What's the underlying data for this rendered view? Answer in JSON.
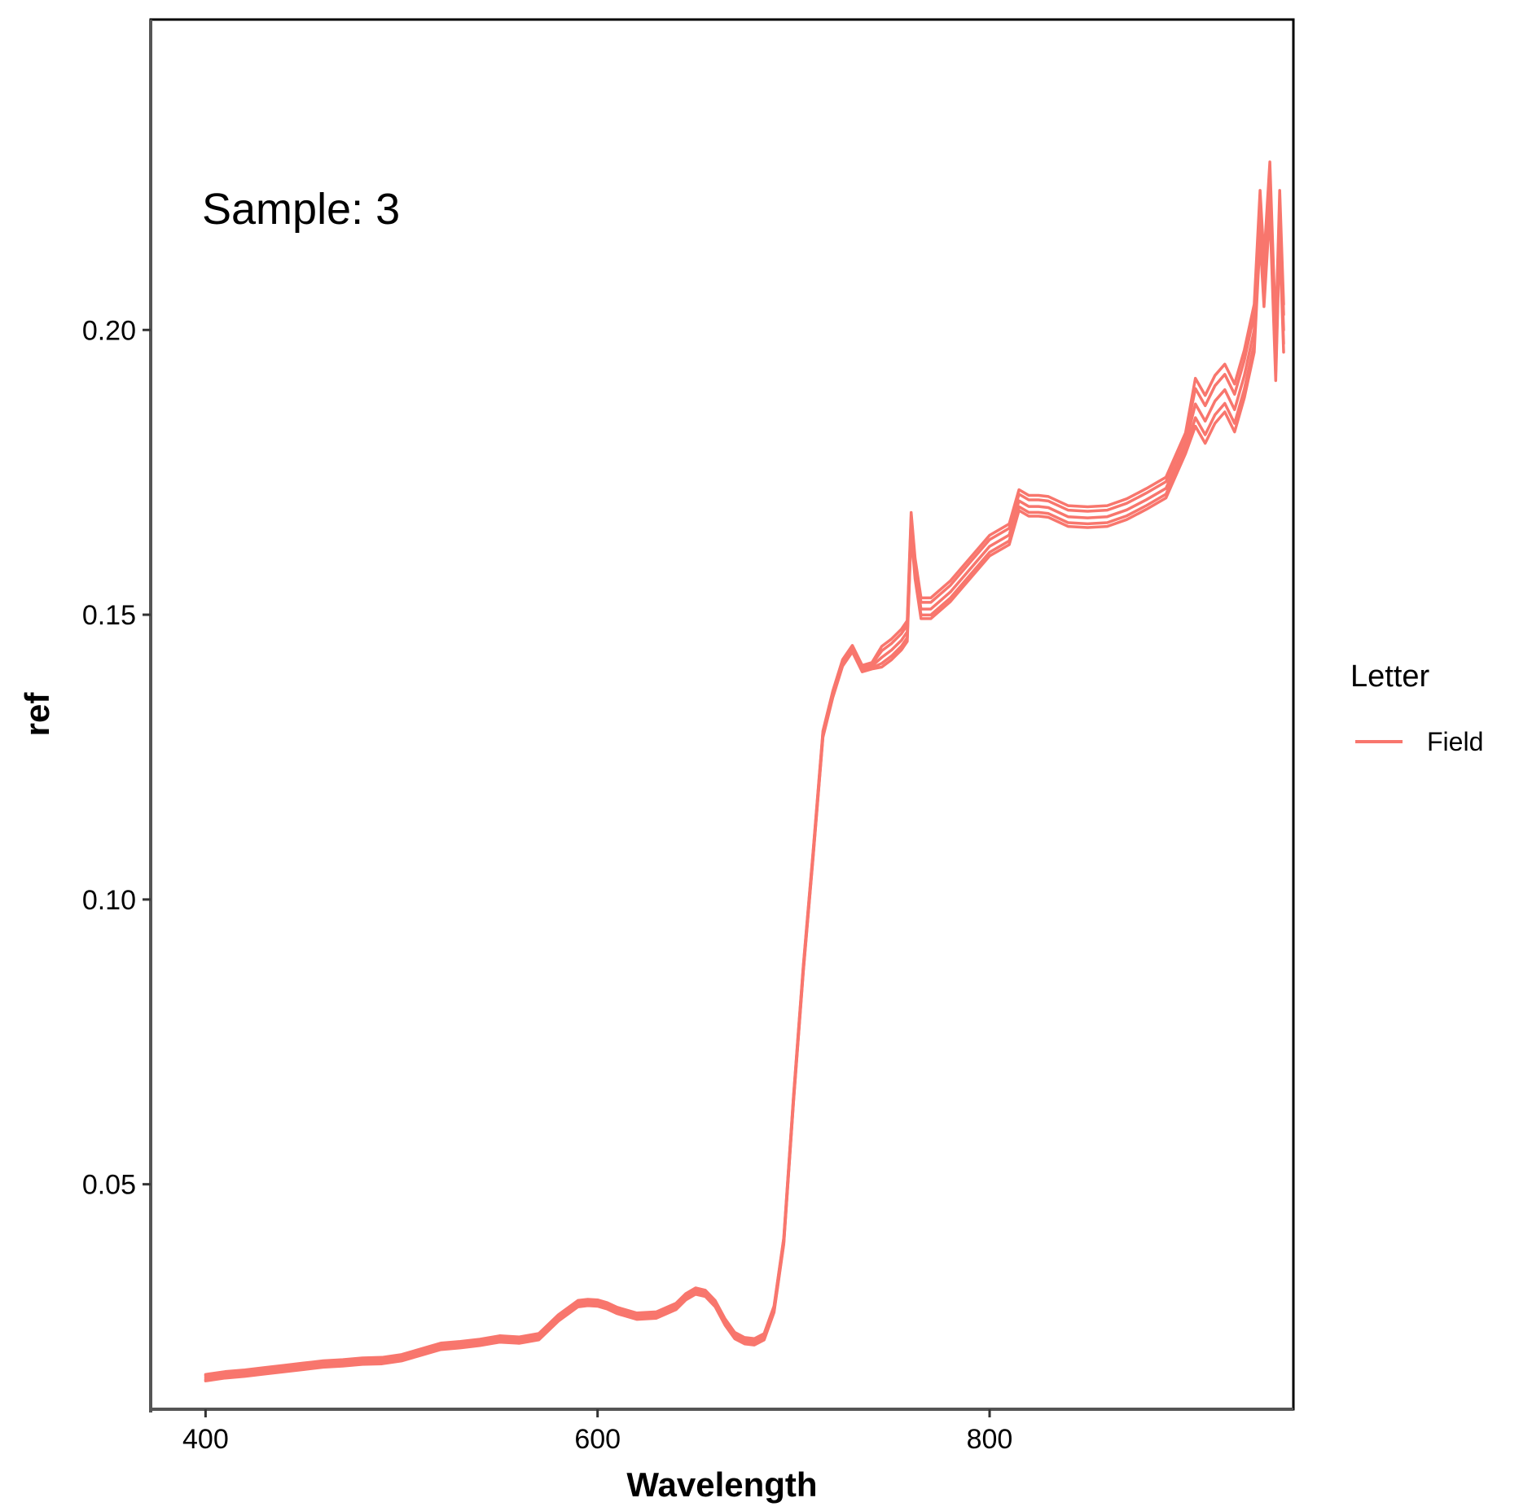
{
  "chart_data": {
    "type": "line",
    "title": "",
    "xlabel": "Wavelength",
    "ylabel": "ref",
    "xlim": [
      372,
      955
    ],
    "ylim": [
      0.0105,
      0.2545
    ],
    "x_ticks": [
      400,
      600,
      800
    ],
    "y_ticks": [
      0.05,
      0.1,
      0.15,
      0.2
    ],
    "x_tick_labels": [
      "400",
      "600",
      "800"
    ],
    "y_tick_labels": [
      "0.05",
      "0.10",
      "0.15",
      "0.20"
    ],
    "grid": false,
    "legend_position": "right",
    "legend_title": "Letter",
    "annotation": "Sample: 3",
    "series_color": "#F8766D",
    "series": [
      {
        "name": "Field",
        "x": [
          400,
          410,
          420,
          430,
          440,
          450,
          460,
          470,
          480,
          490,
          500,
          510,
          520,
          530,
          540,
          550,
          560,
          570,
          580,
          590,
          595,
          600,
          605,
          610,
          620,
          630,
          640,
          645,
          650,
          655,
          660,
          665,
          670,
          675,
          680,
          685,
          690,
          695,
          700,
          705,
          710,
          715,
          720,
          725,
          730,
          735,
          740,
          745,
          750,
          755,
          758,
          760,
          762,
          765,
          770,
          780,
          790,
          800,
          810,
          815,
          820,
          825,
          830,
          840,
          850,
          860,
          870,
          880,
          890,
          900,
          905,
          910,
          915,
          920,
          925,
          930,
          935,
          938,
          940,
          943,
          946,
          948,
          950
        ],
        "y": [
          0.016,
          0.0165,
          0.0168,
          0.0172,
          0.0176,
          0.018,
          0.0184,
          0.0186,
          0.0189,
          0.019,
          0.0195,
          0.0205,
          0.0215,
          0.0218,
          0.0222,
          0.0228,
          0.0226,
          0.0232,
          0.0265,
          0.029,
          0.0292,
          0.0291,
          0.0286,
          0.0278,
          0.0268,
          0.027,
          0.0285,
          0.0302,
          0.0312,
          0.0308,
          0.029,
          0.0258,
          0.0234,
          0.0225,
          0.0223,
          0.0232,
          0.028,
          0.04,
          0.065,
          0.088,
          0.108,
          0.129,
          0.136,
          0.1415,
          0.144,
          0.1405,
          0.141,
          0.1425,
          0.1438,
          0.1455,
          0.147,
          0.166,
          0.158,
          0.151,
          0.151,
          0.154,
          0.158,
          0.162,
          0.164,
          0.17,
          0.169,
          0.169,
          0.1688,
          0.1672,
          0.167,
          0.1672,
          0.1684,
          0.1702,
          0.1722,
          0.18,
          0.187,
          0.184,
          0.1875,
          0.1895,
          0.186,
          0.192,
          0.2,
          0.22,
          0.208,
          0.225,
          0.195,
          0.22,
          0.2
        ]
      }
    ]
  }
}
